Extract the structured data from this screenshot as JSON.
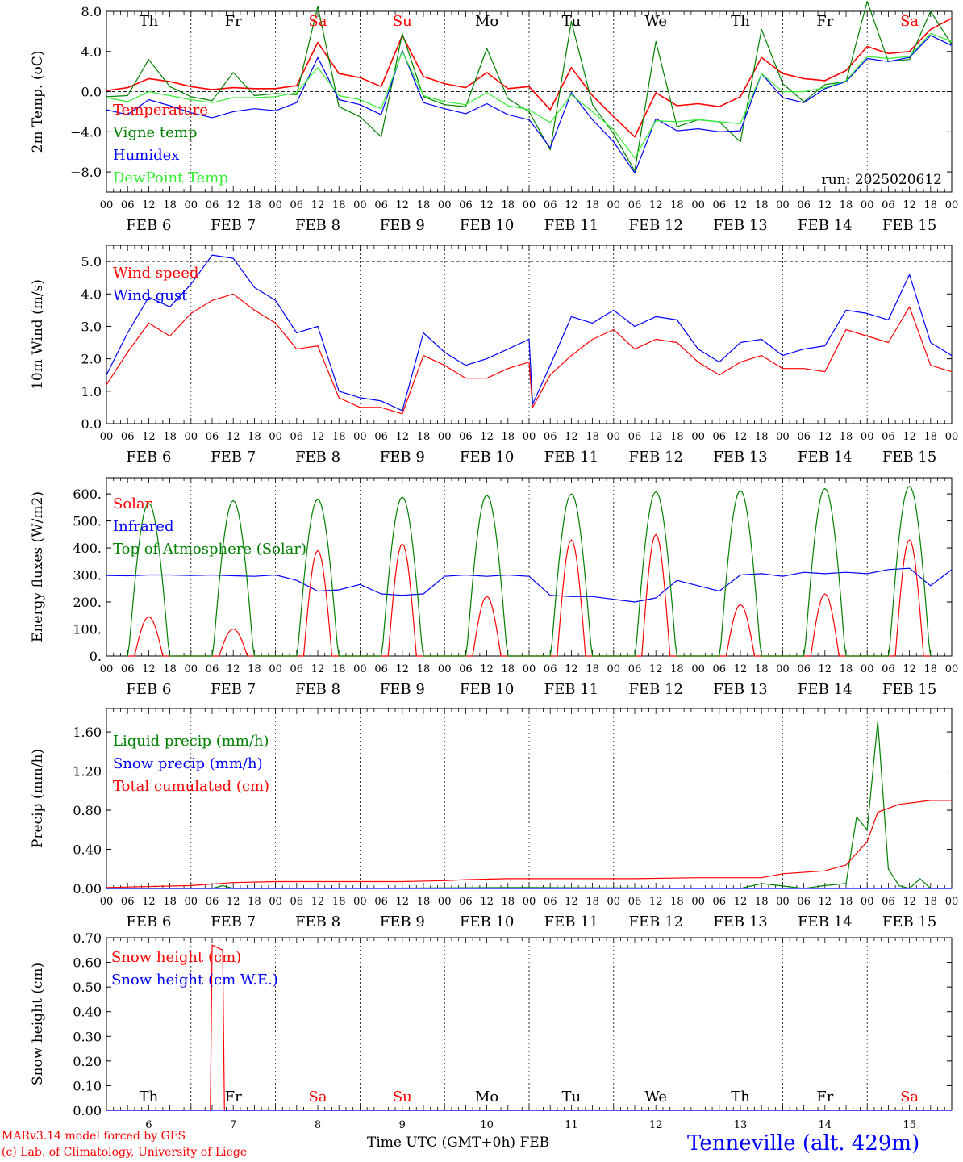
{
  "footer": {
    "credit_model": "MARv3.14 model forced by GFS",
    "credit_lab": "(c) Lab. of Climatology, University of Liege",
    "x_axis_title": "Time UTC (GMT+0h) FEB",
    "station": "Tenneville (alt. 429m)"
  },
  "colors": {
    "red": "#ff0000",
    "green": "#008000",
    "blue": "#0000ff",
    "lime": "#33ee33",
    "dayname_red": "#ff0000"
  },
  "chart_data": [
    {
      "type": "line",
      "ylabel": "2m Temp. (oC)",
      "ylim": [
        -10,
        8
      ],
      "yticks": [
        8.0,
        4.0,
        0.0,
        -4.0,
        -8.0
      ],
      "ytick_labels": [
        "8.0",
        "4.0",
        "0.0",
        "−4.0",
        "−8.0"
      ],
      "ref_line": 0,
      "x_unit": "hours since FEB 6 00 UTC",
      "x_ticks": [
        "00",
        "06",
        "12",
        "18"
      ],
      "x_dates": [
        "FEB 6",
        "FEB 7",
        "FEB 8",
        "FEB 9",
        "FEB 10",
        "FEB 11",
        "FEB 12",
        "FEB 13",
        "FEB 14",
        "FEB 15"
      ],
      "day_names": [
        "Th",
        "Fr",
        "Sa",
        "Su",
        "Mo",
        "Tu",
        "We",
        "Th",
        "Fr",
        "Sa"
      ],
      "run_label": "run: 2025020612",
      "series": [
        {
          "name": "Temperature",
          "color": "red",
          "x": [
            0,
            6,
            12,
            18,
            24,
            30,
            36,
            42,
            48,
            54,
            60,
            66,
            72,
            78,
            84,
            90,
            96,
            102,
            108,
            114,
            120,
            126,
            132,
            138,
            144,
            150,
            156,
            162,
            168,
            174,
            180,
            186,
            192,
            198,
            204,
            210,
            216,
            222,
            228,
            234,
            240
          ],
          "values": [
            0.1,
            0.4,
            1.3,
            1.0,
            0.5,
            0.2,
            0.4,
            0.3,
            0.3,
            0.6,
            4.9,
            1.8,
            1.4,
            0.5,
            5.6,
            1.5,
            0.8,
            0.4,
            1.9,
            0.3,
            0.5,
            -1.8,
            2.4,
            -0.4,
            -2.5,
            -4.5,
            -0.1,
            -1.4,
            -1.2,
            -1.5,
            -0.5,
            3.4,
            1.8,
            1.3,
            1.1,
            2.1,
            4.5,
            3.8,
            4.0,
            6.2,
            7.3
          ]
        },
        {
          "name": "Vigne temp",
          "color": "green",
          "x": [
            0,
            6,
            12,
            18,
            24,
            30,
            36,
            42,
            48,
            54,
            60,
            66,
            72,
            78,
            84,
            90,
            96,
            102,
            108,
            114,
            120,
            126,
            132,
            138,
            144,
            150,
            156,
            162,
            168,
            174,
            180,
            186,
            192,
            198,
            204,
            210,
            216,
            222,
            228,
            234,
            240
          ],
          "values": [
            -0.5,
            -0.4,
            3.2,
            0.5,
            -0.5,
            -0.9,
            1.9,
            -0.4,
            -0.2,
            -0.3,
            8.5,
            -1.5,
            -2.5,
            -4.5,
            5.8,
            -0.5,
            -1.3,
            -1.5,
            4.3,
            -0.7,
            -2.0,
            -5.8,
            7.0,
            -1.3,
            -4.2,
            -7.9,
            5.0,
            -3.5,
            -2.8,
            -3.0,
            -5.0,
            6.2,
            0.8,
            -1.0,
            0.7,
            1.0,
            9.0,
            3.0,
            3.2,
            8.0,
            4.7
          ]
        },
        {
          "name": "Humidex",
          "color": "blue",
          "x": [
            0,
            6,
            12,
            18,
            24,
            30,
            36,
            42,
            48,
            54,
            60,
            66,
            72,
            78,
            84,
            90,
            96,
            102,
            108,
            114,
            120,
            126,
            132,
            138,
            144,
            150,
            156,
            162,
            168,
            174,
            180,
            186,
            192,
            198,
            204,
            210,
            216,
            222,
            228,
            234,
            240
          ],
          "values": [
            -1.8,
            -2.3,
            -0.8,
            -1.4,
            -2.1,
            -2.6,
            -2.0,
            -1.7,
            -1.9,
            -1.1,
            3.4,
            -0.8,
            -1.3,
            -2.3,
            4.1,
            -1.1,
            -1.7,
            -2.2,
            -1.2,
            -2.3,
            -2.8,
            -5.6,
            -0.1,
            -2.8,
            -5.0,
            -8.1,
            -2.7,
            -3.9,
            -3.7,
            -4.0,
            -3.9,
            1.8,
            -0.6,
            -1.1,
            0.3,
            1.0,
            3.3,
            3.0,
            3.4,
            5.6,
            4.6
          ]
        },
        {
          "name": "DewPoint Temp",
          "color": "lime",
          "x": [
            0,
            6,
            12,
            18,
            24,
            30,
            36,
            42,
            48,
            54,
            60,
            66,
            72,
            78,
            84,
            90,
            96,
            102,
            108,
            114,
            120,
            126,
            132,
            138,
            144,
            150,
            156,
            162,
            168,
            174,
            180,
            186,
            192,
            198,
            204,
            210,
            216,
            222,
            228,
            234,
            240
          ],
          "values": [
            -0.6,
            -1.0,
            0.0,
            -0.4,
            -0.8,
            -1.1,
            -0.6,
            -0.6,
            -0.5,
            -0.1,
            2.4,
            -0.4,
            -0.8,
            -1.7,
            4.0,
            -0.4,
            -1.0,
            -1.3,
            -0.1,
            -1.4,
            -1.8,
            -3.1,
            -0.3,
            -2.0,
            -3.8,
            -6.6,
            -2.9,
            -3.0,
            -2.8,
            -3.0,
            -3.2,
            1.8,
            0.0,
            0.0,
            0.4,
            1.1,
            3.5,
            3.3,
            3.5,
            5.8,
            5.0
          ]
        }
      ]
    },
    {
      "type": "line",
      "ylabel": "10m Wind (m/s)",
      "ylim": [
        0,
        5.5
      ],
      "yticks": [
        0.0,
        1.0,
        2.0,
        3.0,
        4.0,
        5.0
      ],
      "ytick_labels": [
        "0.0",
        "1.0",
        "2.0",
        "3.0",
        "4.0",
        "5.0"
      ],
      "ref_line": 5,
      "series": [
        {
          "name": "Wind speed",
          "color": "red",
          "x": [
            0,
            6,
            12,
            18,
            24,
            30,
            36,
            42,
            48,
            54,
            60,
            66,
            72,
            78,
            84,
            90,
            96,
            102,
            108,
            114,
            120,
            121,
            126,
            132,
            138,
            144,
            150,
            156,
            162,
            168,
            174,
            180,
            186,
            192,
            198,
            204,
            210,
            216,
            222,
            228,
            234,
            240
          ],
          "values": [
            1.2,
            2.2,
            3.1,
            2.7,
            3.4,
            3.8,
            4.0,
            3.5,
            3.1,
            2.3,
            2.4,
            0.8,
            0.5,
            0.5,
            0.3,
            2.1,
            1.8,
            1.4,
            1.4,
            1.7,
            1.9,
            0.5,
            1.5,
            2.1,
            2.6,
            2.9,
            2.3,
            2.6,
            2.5,
            1.9,
            1.5,
            1.9,
            2.1,
            1.7,
            1.7,
            1.6,
            2.9,
            2.7,
            2.5,
            3.6,
            1.8,
            1.6
          ]
        },
        {
          "name": "Wind gust",
          "color": "blue",
          "x": [
            0,
            6,
            12,
            18,
            24,
            30,
            36,
            42,
            48,
            54,
            60,
            66,
            72,
            78,
            84,
            90,
            96,
            102,
            108,
            114,
            120,
            121,
            126,
            132,
            138,
            144,
            150,
            156,
            162,
            168,
            174,
            180,
            186,
            192,
            198,
            204,
            210,
            216,
            222,
            228,
            234,
            240
          ],
          "values": [
            1.5,
            2.8,
            3.9,
            3.6,
            4.3,
            5.2,
            5.1,
            4.2,
            3.8,
            2.8,
            3.0,
            1.0,
            0.8,
            0.7,
            0.4,
            2.8,
            2.2,
            1.8,
            2.0,
            2.3,
            2.6,
            0.6,
            1.8,
            3.3,
            3.1,
            3.5,
            3.0,
            3.3,
            3.2,
            2.3,
            1.9,
            2.5,
            2.6,
            2.1,
            2.3,
            2.4,
            3.5,
            3.4,
            3.2,
            4.6,
            2.5,
            2.1
          ]
        }
      ]
    },
    {
      "type": "line",
      "ylabel": "Energy fluxes (W/m2)",
      "ylim": [
        0,
        660
      ],
      "yticks": [
        0,
        100,
        200,
        300,
        400,
        500,
        600
      ],
      "ytick_labels": [
        "0.",
        "100.",
        "200.",
        "300.",
        "400.",
        "500.",
        "600."
      ],
      "series": [
        {
          "name": "Solar",
          "color": "red",
          "peaks": [
            145,
            100,
            390,
            415,
            220,
            430,
            450,
            190,
            230,
            430
          ],
          "peak_hour": 12
        },
        {
          "name": "Infrared",
          "color": "blue",
          "x": [
            0,
            6,
            12,
            18,
            24,
            30,
            36,
            42,
            48,
            54,
            60,
            66,
            72,
            78,
            84,
            90,
            96,
            102,
            108,
            114,
            120,
            126,
            132,
            138,
            144,
            150,
            156,
            162,
            168,
            174,
            180,
            186,
            192,
            198,
            204,
            210,
            216,
            222,
            228,
            234,
            240
          ],
          "values": [
            298,
            297,
            300,
            300,
            298,
            300,
            297,
            295,
            300,
            280,
            240,
            245,
            265,
            230,
            225,
            230,
            295,
            300,
            295,
            300,
            295,
            225,
            220,
            220,
            210,
            200,
            215,
            280,
            260,
            240,
            300,
            305,
            295,
            310,
            305,
            310,
            305,
            320,
            325,
            260,
            320
          ]
        },
        {
          "name": "Top of Atmosphere (Solar)",
          "color": "green",
          "peaks": [
            565,
            575,
            580,
            588,
            595,
            600,
            608,
            612,
            620,
            628
          ],
          "peak_hour": 12
        }
      ]
    },
    {
      "type": "line",
      "ylabel": "Precip (mm/h)",
      "ylim": [
        0,
        1.84
      ],
      "yticks": [
        0.0,
        0.4,
        0.8,
        1.2,
        1.6
      ],
      "ytick_labels": [
        "0.00",
        "0.40",
        "0.80",
        "1.20",
        "1.60"
      ],
      "series": [
        {
          "name": "Liquid precip (mm/h)",
          "color": "green",
          "x": [
            0,
            30,
            33,
            36,
            60,
            120,
            180,
            186,
            198,
            204,
            210,
            213,
            216,
            219,
            222,
            225,
            228,
            231,
            234,
            237,
            240
          ],
          "values": [
            0,
            0,
            0.03,
            0,
            0,
            0.01,
            0,
            0.05,
            0,
            0.03,
            0.05,
            0.73,
            0.6,
            1.71,
            0.2,
            0.03,
            0,
            0.1,
            0,
            0,
            0
          ]
        },
        {
          "name": "Snow precip (mm/h)",
          "color": "blue",
          "x": [
            0,
            240
          ],
          "values": [
            0,
            0
          ]
        },
        {
          "name": "Total cumulated (cm)",
          "color": "red",
          "x": [
            0,
            24,
            36,
            48,
            60,
            72,
            84,
            96,
            102,
            114,
            132,
            150,
            168,
            186,
            192,
            204,
            210,
            216,
            219,
            225,
            234,
            240
          ],
          "values": [
            0.01,
            0.03,
            0.06,
            0.07,
            0.07,
            0.07,
            0.07,
            0.08,
            0.09,
            0.1,
            0.1,
            0.1,
            0.11,
            0.11,
            0.15,
            0.18,
            0.24,
            0.48,
            0.78,
            0.86,
            0.9,
            0.9
          ]
        }
      ]
    },
    {
      "type": "line",
      "ylabel": "Snow height (cm)",
      "ylim": [
        0,
        0.7
      ],
      "yticks": [
        0.0,
        0.1,
        0.2,
        0.3,
        0.4,
        0.5,
        0.6,
        0.7
      ],
      "ytick_labels": [
        "0.00",
        "0.10",
        "0.20",
        "0.30",
        "0.40",
        "0.50",
        "0.60",
        "0.70"
      ],
      "day_names": [
        "Th",
        "Fr",
        "Sa",
        "Su",
        "Mo",
        "Tu",
        "We",
        "Th",
        "Fr",
        "Sa"
      ],
      "day_numbers": [
        "6",
        "7",
        "8",
        "9",
        "10",
        "11",
        "12",
        "13",
        "14",
        "15"
      ],
      "series": [
        {
          "name": "Snow height (cm)",
          "color": "red",
          "x": [
            0,
            29.5,
            30,
            33,
            33.5,
            240
          ],
          "values": [
            0,
            0,
            0.67,
            0.65,
            0,
            0
          ]
        },
        {
          "name": "Snow height (cm W.E.)",
          "color": "blue",
          "x": [
            0,
            240
          ],
          "values": [
            0,
            0
          ]
        }
      ]
    }
  ]
}
